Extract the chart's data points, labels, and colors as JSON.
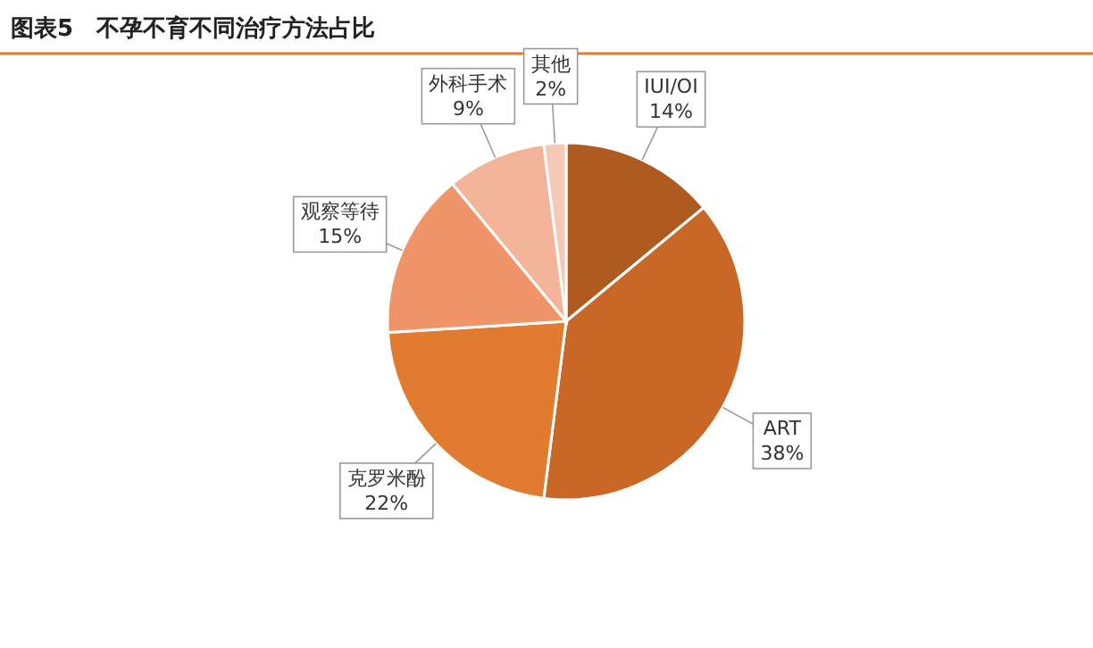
{
  "chart_data": {
    "type": "pie",
    "title": "图表5　不孕不育不同治疗方法占比",
    "categories": [
      "IUI/OI",
      "ART",
      "克罗米酚",
      "观察等待",
      "外科手术",
      "其他"
    ],
    "values": [
      14,
      38,
      22,
      15,
      9,
      2
    ],
    "colors": [
      "#ae5a20",
      "#c96826",
      "#e07b30",
      "#f0956a",
      "#f3b49a",
      "#f6c9b6"
    ],
    "value_labels": [
      "14%",
      "38%",
      "22%",
      "15%",
      "9%",
      "2%"
    ]
  }
}
